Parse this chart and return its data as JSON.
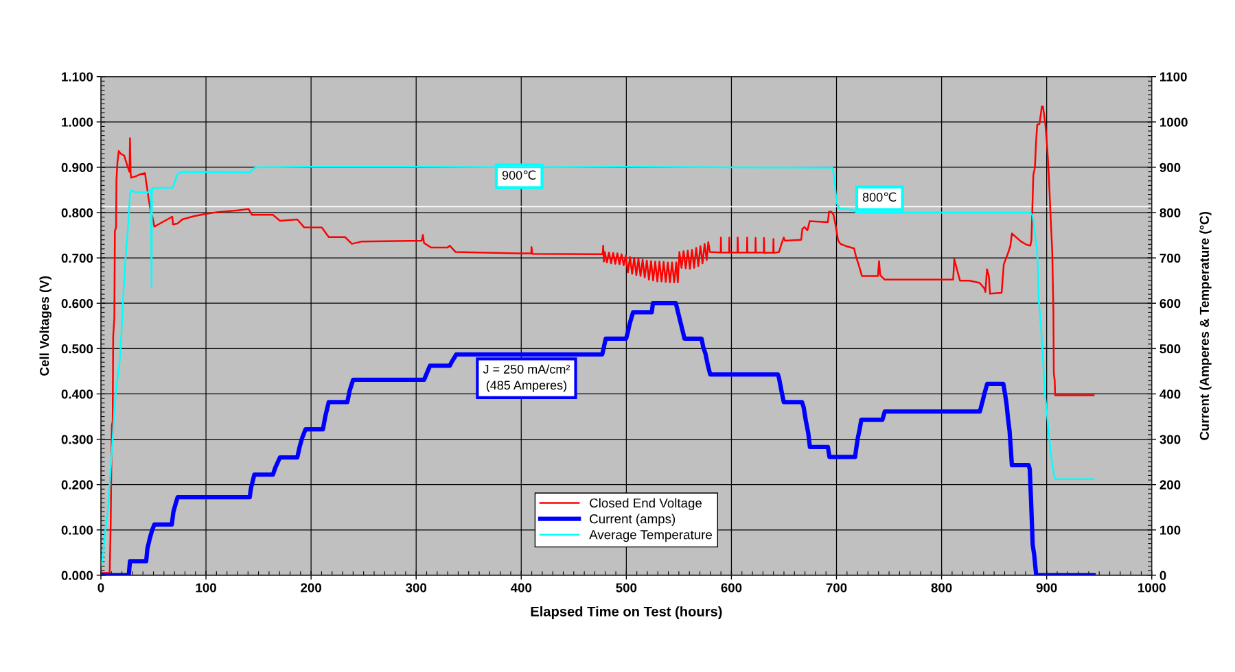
{
  "chart_data": {
    "type": "line",
    "xlabel": "Elapsed Time on Test (hours)",
    "ylabel": "Cell Voltages (V)",
    "y2label": "Current (Amperes & Temperature (°C)",
    "xlim": [
      0,
      1000
    ],
    "xticks": [
      0,
      100,
      200,
      300,
      400,
      500,
      600,
      700,
      800,
      900,
      1000
    ],
    "ylim": [
      0,
      1.1
    ],
    "yticks": [
      {
        "value": 0,
        "label": "0.000"
      },
      {
        "value": 0.1,
        "label": "0.100"
      },
      {
        "value": 0.2,
        "label": "0.200"
      },
      {
        "value": 0.3,
        "label": "0.300"
      },
      {
        "value": 0.4,
        "label": "0.400"
      },
      {
        "value": 0.5,
        "label": "0.500"
      },
      {
        "value": 0.6,
        "label": "0.600"
      },
      {
        "value": 0.7,
        "label": "0.700"
      },
      {
        "value": 0.8,
        "label": "0.800"
      },
      {
        "value": 0.9,
        "label": "0.900"
      },
      {
        "value": 1.0,
        "label": "1.000"
      },
      {
        "value": 1.1,
        "label": "1.100"
      }
    ],
    "y2lim": [
      0,
      1100
    ],
    "y2ticks": [
      0,
      100,
      200,
      300,
      400,
      500,
      600,
      700,
      800,
      900,
      1000,
      1100
    ],
    "grid": true,
    "legend": "bottom",
    "line_style": "solid",
    "ref_lines": [
      {
        "axis": "y",
        "value": 0.813,
        "color": "#ffffff"
      }
    ],
    "annotations": [
      "900℃",
      "800℃",
      "J = 250 mA/cm²\n(485 Amperes)"
    ],
    "series": [
      {
        "name": "Closed End Voltage",
        "color": "#ff0000",
        "x": [
          0,
          8.0,
          8.4,
          9.3,
          10.4,
          11.2,
          11.7,
          12.8,
          13.3,
          14.4,
          14.8,
          15.7,
          17.0,
          18.8,
          22.1,
          23.9,
          26.1,
          27.2,
          27.7,
          28.3,
          28.8,
          33.2,
          38.0,
          42.0,
          43.1,
          44.2,
          45.4,
          46.9,
          47.6,
          49.1,
          50.9,
          67.9,
          68.6,
          73.0,
          77.4,
          88.5,
          99.6,
          110.6,
          130.5,
          140.5,
          143.8,
          163.7,
          170.4,
          186.9,
          193.6,
          210.2,
          216.8,
          232.3,
          238.9,
          247.8,
          305.3,
          306.4,
          307.5,
          314.2,
          329.8,
          332.0,
          337.6,
          396.4,
          409.6,
          409.8,
          410.5,
          477.4,
          478.0,
          478.6,
          479.5,
          481.5,
          483.5,
          485.5,
          487.5,
          489.5,
          491.5,
          493.5,
          495.5,
          497.5,
          499.5,
          501.5,
          503.5,
          505.5,
          507.5,
          509.5,
          511.5,
          513.5,
          515.5,
          517.5,
          519.5,
          521.5,
          523.5,
          525.5,
          527.5,
          529.5,
          531.5,
          533.5,
          535.5,
          537.5,
          539.5,
          541.5,
          543.5,
          545.5,
          547.5,
          549.0,
          550.5,
          552.5,
          554.5,
          556.5,
          558.5,
          560.5,
          562.5,
          564.5,
          566.5,
          568.5,
          570.5,
          572.5,
          574.5,
          576.5,
          578.0,
          579.5,
          589.8,
          590,
          590.3,
          597.8,
          598,
          598.3,
          605.8,
          606,
          606.3,
          614.8,
          615,
          615.3,
          622.8,
          623,
          623.3,
          630.8,
          631,
          631.3,
          639.8,
          640,
          640.3,
          645.3,
          647.5,
          649.8,
          651,
          666.4,
          667.5,
          669.5,
          672.3,
          674.5,
          691.8,
          692.9,
          695.0,
          697.2,
          699.4,
          701.5,
          703.7,
          709.1,
          716.7,
          718.8,
          721.0,
          724.2,
          739.4,
          740.5,
          741.6,
          745.9,
          811.0,
          812.1,
          815.4,
          817.5,
          826.3,
          836.2,
          840.6,
          841.7,
          843.2,
          845.0,
          846.1,
          857.1,
          859.2,
          863.6,
          865.4,
          866.9,
          875.7,
          881.1,
          884.4,
          885.5,
          887.3,
          888.8,
          889.9,
          891.0,
          893.2,
          895.4,
          896.5,
          898.7,
          900.4,
          902.0,
          903.5,
          905.3,
          906.4,
          906.8,
          907.6,
          908.1,
          944.7
        ],
        "values": [
          0.005,
          0.005,
          0.01,
          0.11,
          0.33,
          0.34,
          0.527,
          0.569,
          0.759,
          0.767,
          0.872,
          0.91,
          0.936,
          0.93,
          0.926,
          0.913,
          0.897,
          0.89,
          0.964,
          0.887,
          0.877,
          0.88,
          0.885,
          0.887,
          0.867,
          0.851,
          0.831,
          0.81,
          0.8,
          0.79,
          0.769,
          0.791,
          0.774,
          0.776,
          0.785,
          0.792,
          0.797,
          0.801,
          0.805,
          0.808,
          0.795,
          0.795,
          0.782,
          0.785,
          0.767,
          0.767,
          0.746,
          0.746,
          0.731,
          0.736,
          0.738,
          0.751,
          0.733,
          0.723,
          0.723,
          0.727,
          0.713,
          0.71,
          0.71,
          0.724,
          0.709,
          0.708,
          0.727,
          0.692,
          0.713,
          0.69,
          0.712,
          0.688,
          0.711,
          0.687,
          0.71,
          0.686,
          0.708,
          0.684,
          0.705,
          0.668,
          0.702,
          0.665,
          0.7,
          0.662,
          0.698,
          0.66,
          0.696,
          0.657,
          0.694,
          0.652,
          0.693,
          0.65,
          0.692,
          0.648,
          0.692,
          0.648,
          0.691,
          0.647,
          0.69,
          0.646,
          0.69,
          0.646,
          0.69,
          0.646,
          0.713,
          0.678,
          0.715,
          0.677,
          0.716,
          0.676,
          0.718,
          0.678,
          0.722,
          0.682,
          0.726,
          0.688,
          0.731,
          0.695,
          0.735,
          0.713,
          0.712,
          0.745,
          0.712,
          0.712,
          0.745,
          0.712,
          0.712,
          0.745,
          0.712,
          0.712,
          0.745,
          0.712,
          0.712,
          0.744,
          0.712,
          0.712,
          0.744,
          0.711,
          0.712,
          0.742,
          0.711,
          0.713,
          0.73,
          0.745,
          0.738,
          0.74,
          0.764,
          0.768,
          0.761,
          0.781,
          0.779,
          0.802,
          0.802,
          0.795,
          0.769,
          0.739,
          0.731,
          0.726,
          0.721,
          0.701,
          0.686,
          0.66,
          0.66,
          0.693,
          0.662,
          0.652,
          0.652,
          0.697,
          0.668,
          0.65,
          0.65,
          0.645,
          0.633,
          0.625,
          0.675,
          0.66,
          0.621,
          0.623,
          0.686,
          0.713,
          0.726,
          0.754,
          0.736,
          0.729,
          0.727,
          0.739,
          0.883,
          0.9,
          0.956,
          0.994,
          0.996,
          1.034,
          1.034,
          0.996,
          0.948,
          0.885,
          0.804,
          0.713,
          0.582,
          0.444,
          0.431,
          0.397,
          0.397
        ]
      },
      {
        "name": "Current (amps)",
        "color": "#0000ff",
        "axis": "y2",
        "x": [
          0,
          26.5,
          27.7,
          43.1,
          44.2,
          46.5,
          48.7,
          50.9,
          67.5,
          69,
          70.8,
          73,
          141.6,
          142.7,
          146,
          163.7,
          165.9,
          170.4,
          186.9,
          189.2,
          191.4,
          194.7,
          211.3,
          213.5,
          216.8,
          234.5,
          236.7,
          240,
          307.5,
          309.7,
          313.1,
          331.9,
          334.2,
          338.2,
          477.1,
          478.7,
          480.4,
          499.8,
          501.3,
          503.1,
          506.4,
          524.2,
          525.3,
          547.1,
          548.7,
          550.9,
          554.2,
          555.3,
          571.6,
          573.1,
          575.3,
          577.6,
          579.8,
          644.2,
          645.3,
          647.6,
          649.8,
          667.1,
          668.7,
          670.9,
          673.1,
          674.7,
          691.8,
          693.3,
          717.7,
          718.8,
          720.3,
          722.1,
          723.6,
          743.7,
          745.9,
          836.4,
          838.9,
          840.8,
          843.4,
          858.8,
          860.3,
          861.8,
          863.2,
          864.7,
          865.8,
          866.9,
          882.8,
          883.9,
          885,
          886.7,
          888.2,
          890,
          944.7
        ],
        "values": [
          0,
          0,
          31,
          31,
          58,
          81,
          99,
          112,
          112,
          140,
          155,
          172,
          172,
          191,
          222,
          222,
          237,
          260,
          260,
          284,
          302,
          322,
          322,
          350,
          382,
          382,
          407,
          431,
          431,
          443,
          462,
          462,
          472,
          487,
          487,
          504,
          522,
          522,
          535,
          554,
          580,
          580,
          600,
          600,
          585,
          564,
          533,
          522,
          522,
          504,
          489,
          463,
          443,
          443,
          435,
          407,
          382,
          382,
          371,
          340,
          314,
          283,
          283,
          261,
          261,
          280,
          303,
          323,
          343,
          343,
          361,
          361,
          383,
          401,
          422,
          422,
          401,
          378,
          346,
          318,
          282,
          243,
          243,
          234,
          174,
          67,
          44,
          0,
          0
        ]
      },
      {
        "name": "Average Temperature",
        "color": "#00ffff",
        "axis": "y2",
        "x": [
          0.4,
          2.2,
          4.4,
          6.6,
          8.8,
          11.1,
          13.3,
          15.5,
          17.7,
          19.5,
          21,
          23.2,
          24.8,
          26.5,
          27.7,
          28.8,
          33.2,
          44.2,
          47.6,
          48.2,
          48.6,
          49.1,
          68.6,
          70.8,
          73,
          76.3,
          141.6,
          146,
          148.2,
          200,
          300,
          400,
          500,
          600,
          696.1,
          697.8,
          699.3,
          700.4,
          702.6,
          715.6,
          718.9,
          884.4,
          886.6,
          888.8,
          891,
          892.5,
          894.7,
          896.5,
          898.7,
          900.4,
          902.6,
          904.8,
          907,
          908.6,
          944.7
        ],
        "values": [
          22,
          50,
          104,
          140,
          217,
          299,
          381,
          427,
          468,
          530,
          605,
          692,
          738,
          790,
          841,
          849,
          845,
          844,
          851,
          636,
          850,
          854,
          855,
          872,
          885,
          890,
          889,
          898,
          900,
          901,
          901,
          900,
          901,
          900,
          899,
          880,
          842,
          820,
          809,
          806,
          800,
          800,
          794,
          754,
          713,
          607,
          544,
          474,
          393,
          353,
          298,
          252,
          219,
          212,
          212
        ]
      }
    ]
  }
}
